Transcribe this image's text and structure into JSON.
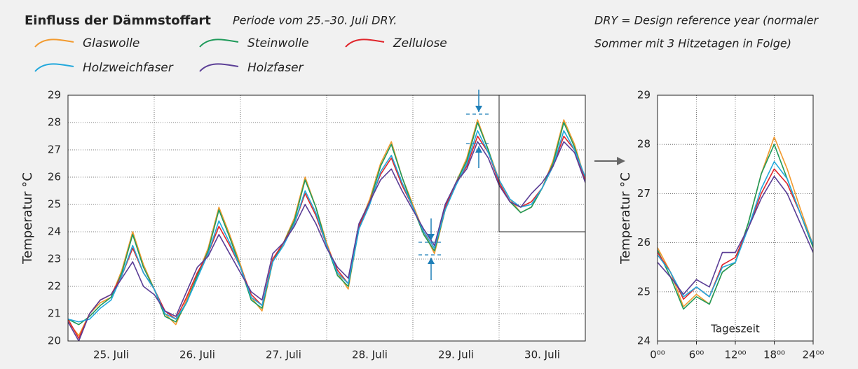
{
  "header": {
    "title": "Einfluss der Dämmstoffart",
    "subtitle": "Periode vom 25.–30. Juli DRY.",
    "note": [
      "DRY = Design reference year (normaler",
      "Sommer mit 3 Hitzetagen in Folge)"
    ]
  },
  "chart_data": [
    {
      "type": "line",
      "ylabel": "Temperatur °C",
      "x": [
        0,
        3,
        6,
        9,
        12,
        15,
        18,
        21,
        24,
        27,
        30,
        33,
        36,
        39,
        42,
        45,
        48,
        51,
        54,
        57,
        60,
        63,
        66,
        69,
        72,
        75,
        78,
        81,
        84,
        87,
        90,
        93,
        96,
        99,
        102,
        105,
        108,
        111,
        114,
        117,
        120,
        123,
        126,
        129,
        132,
        135,
        138,
        141,
        144
      ],
      "xlim": [
        0,
        144
      ],
      "xticks": [
        {
          "value": 12,
          "label": "25. Juli"
        },
        {
          "value": 36,
          "label": "26. Juli"
        },
        {
          "value": 60,
          "label": "27. Juli"
        },
        {
          "value": 84,
          "label": "28. Juli"
        },
        {
          "value": 108,
          "label": "29. Juli"
        },
        {
          "value": 132,
          "label": "30. Juli"
        }
      ],
      "ylim": [
        20,
        29
      ],
      "yticks": [
        20,
        21,
        22,
        23,
        24,
        25,
        26,
        27,
        28,
        29
      ],
      "grid": true,
      "series": [
        {
          "name": "Glaswolle",
          "color": "#f29a2e",
          "values": [
            20.7,
            20.2,
            21.0,
            21.4,
            21.6,
            22.6,
            24.0,
            22.8,
            21.9,
            21.0,
            20.6,
            21.5,
            22.4,
            23.4,
            24.9,
            23.9,
            22.8,
            21.6,
            21.1,
            22.9,
            23.6,
            24.5,
            26.0,
            24.9,
            23.6,
            22.5,
            21.9,
            24.2,
            25.2,
            26.5,
            27.3,
            26.0,
            25.0,
            24.0,
            23.2,
            24.8,
            25.8,
            26.7,
            28.1,
            27.0,
            25.9,
            25.2,
            24.7,
            24.9,
            25.6,
            26.6,
            28.1,
            27.2,
            25.9
          ]
        },
        {
          "name": "Steinwolle",
          "color": "#1f9a5a",
          "values": [
            20.8,
            20.6,
            20.9,
            21.3,
            21.6,
            22.5,
            23.9,
            22.7,
            21.9,
            20.9,
            20.7,
            21.4,
            22.4,
            23.3,
            24.8,
            23.8,
            22.7,
            21.5,
            21.2,
            22.9,
            23.6,
            24.4,
            25.9,
            24.9,
            23.5,
            22.4,
            22.0,
            24.1,
            25.1,
            26.4,
            27.2,
            26.0,
            24.9,
            23.9,
            23.3,
            24.8,
            25.8,
            26.6,
            28.0,
            27.0,
            25.8,
            25.1,
            24.7,
            24.9,
            25.6,
            26.5,
            28.0,
            27.1,
            25.9
          ]
        },
        {
          "name": "Zellulose",
          "color": "#e0252b",
          "values": [
            20.8,
            20.1,
            21.0,
            21.5,
            21.7,
            22.4,
            23.4,
            22.5,
            21.9,
            21.1,
            20.8,
            21.6,
            22.5,
            23.2,
            24.2,
            23.5,
            22.7,
            21.7,
            21.3,
            23.0,
            23.6,
            24.3,
            25.4,
            24.6,
            23.5,
            22.6,
            22.1,
            24.2,
            25.1,
            26.1,
            26.7,
            25.7,
            24.9,
            24.0,
            23.4,
            24.9,
            25.8,
            26.4,
            27.5,
            26.9,
            25.8,
            25.1,
            24.9,
            25.1,
            25.6,
            26.4,
            27.5,
            27.0,
            25.9
          ]
        },
        {
          "name": "Holzweichfaser",
          "color": "#22a8dc",
          "values": [
            20.8,
            20.7,
            20.8,
            21.2,
            21.5,
            22.4,
            23.5,
            22.5,
            21.9,
            21.0,
            20.8,
            21.4,
            22.3,
            23.2,
            24.4,
            23.6,
            22.7,
            21.6,
            21.3,
            22.9,
            23.5,
            24.3,
            25.5,
            24.7,
            23.5,
            22.5,
            22.1,
            24.1,
            25.0,
            26.2,
            26.8,
            25.8,
            24.9,
            24.0,
            23.4,
            24.8,
            25.7,
            26.5,
            27.7,
            26.9,
            25.9,
            25.2,
            24.9,
            25.0,
            25.6,
            26.4,
            27.7,
            27.0,
            26.0
          ]
        },
        {
          "name": "Holzfaser",
          "color": "#5b3e96",
          "values": [
            20.7,
            20.0,
            21.0,
            21.5,
            21.7,
            22.3,
            22.9,
            22.0,
            21.7,
            21.1,
            20.9,
            21.8,
            22.7,
            23.1,
            23.9,
            23.2,
            22.5,
            21.8,
            21.5,
            23.2,
            23.6,
            24.2,
            25.0,
            24.3,
            23.4,
            22.7,
            22.3,
            24.3,
            25.1,
            25.9,
            26.3,
            25.5,
            24.8,
            24.1,
            23.5,
            25.0,
            25.8,
            26.3,
            27.3,
            26.7,
            25.7,
            25.1,
            24.9,
            25.4,
            25.8,
            26.4,
            27.3,
            26.9,
            25.8
          ]
        }
      ]
    },
    {
      "type": "line",
      "ylabel": "Temperatur °C",
      "annotation": "Tageszeit",
      "x": [
        0,
        2,
        4,
        6,
        8,
        10,
        12,
        14,
        16,
        18,
        20,
        22,
        24
      ],
      "xlim": [
        0,
        24
      ],
      "xticks": [
        {
          "value": 0,
          "label": "0⁰⁰"
        },
        {
          "value": 6,
          "label": "6⁰⁰"
        },
        {
          "value": 12,
          "label": "12⁰⁰"
        },
        {
          "value": 18,
          "label": "18⁰⁰"
        },
        {
          "value": 24,
          "label": "24⁰⁰"
        }
      ],
      "ylim": [
        24,
        29
      ],
      "yticks": [
        24,
        25,
        26,
        27,
        28,
        29
      ],
      "grid": true,
      "series": [
        {
          "color": "#f29a2e",
          "values": [
            25.9,
            25.4,
            24.7,
            24.95,
            24.75,
            25.4,
            25.6,
            26.4,
            27.4,
            28.15,
            27.5,
            26.7,
            25.95
          ]
        },
        {
          "color": "#1f9a5a",
          "values": [
            25.85,
            25.3,
            24.65,
            24.9,
            24.75,
            25.4,
            25.6,
            26.4,
            27.4,
            28.0,
            27.3,
            26.6,
            25.9
          ]
        },
        {
          "color": "#e0252b",
          "values": [
            25.8,
            25.4,
            24.85,
            25.1,
            24.9,
            25.55,
            25.7,
            26.3,
            27.0,
            27.5,
            27.2,
            26.6,
            25.95
          ]
        },
        {
          "color": "#22a8dc",
          "values": [
            25.75,
            25.4,
            24.9,
            25.1,
            24.9,
            25.5,
            25.6,
            26.3,
            27.1,
            27.65,
            27.3,
            26.6,
            25.95
          ]
        },
        {
          "color": "#5b3e96",
          "values": [
            25.6,
            25.3,
            24.95,
            25.25,
            25.1,
            25.8,
            25.8,
            26.3,
            26.9,
            27.35,
            27.0,
            26.4,
            25.8
          ]
        }
      ]
    }
  ]
}
